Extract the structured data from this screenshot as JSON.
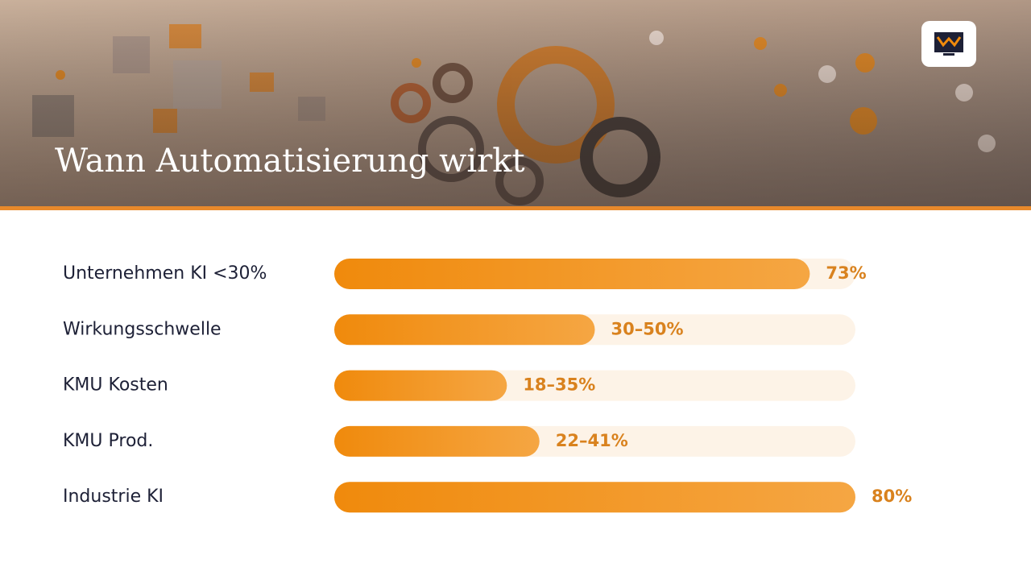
{
  "chart_data": {
    "type": "bar",
    "orientation": "horizontal",
    "title": "Wann Automatisierung wirkt",
    "categories": [
      "Unternehmen KI <30%",
      "Wirkungsschwelle",
      "KMU Kosten",
      "KMU Prod.",
      "Industrie KI"
    ],
    "values": [
      73,
      40,
      26.5,
      31.5,
      80
    ],
    "value_labels": [
      "73%",
      "30–50%",
      "18–35%",
      "22–41%",
      "80%"
    ],
    "xlim": [
      0,
      80
    ],
    "color": "#f08a0c",
    "track_color": "#fdf3e7"
  }
}
